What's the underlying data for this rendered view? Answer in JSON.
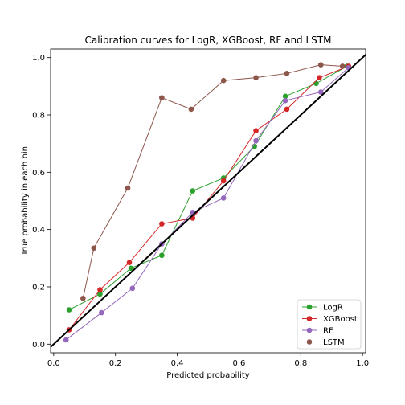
{
  "chart_data": {
    "type": "line",
    "title": "Calibration curves for LogR, XGBoost, RF and LSTM",
    "xlabel": "Predicted probability",
    "ylabel": "True probability in each bin",
    "xlim": [
      -0.01,
      1.01
    ],
    "ylim": [
      -0.03,
      1.03
    ],
    "xticks": [
      "0.0",
      "0.2",
      "0.4",
      "0.6",
      "0.8",
      "1.0"
    ],
    "yticks": [
      "0.0",
      "0.2",
      "0.4",
      "0.6",
      "0.8",
      "1.0"
    ],
    "grid": false,
    "legend_position": "lower-right",
    "reference_line": {
      "x": [
        -0.03,
        1.03
      ],
      "y": [
        -0.03,
        1.03
      ],
      "color": "#000000"
    },
    "series": [
      {
        "name": "LogR",
        "color": "#2ca02c",
        "x": [
          0.05,
          0.15,
          0.25,
          0.35,
          0.45,
          0.55,
          0.65,
          0.75,
          0.85,
          0.95
        ],
        "y": [
          0.12,
          0.175,
          0.265,
          0.31,
          0.535,
          0.58,
          0.69,
          0.865,
          0.91,
          0.97
        ]
      },
      {
        "name": "XGBoost",
        "color": "#d62728",
        "x": [
          0.05,
          0.15,
          0.245,
          0.35,
          0.45,
          0.55,
          0.655,
          0.755,
          0.86,
          0.955
        ],
        "y": [
          0.05,
          0.19,
          0.285,
          0.42,
          0.44,
          0.57,
          0.745,
          0.82,
          0.93,
          0.97
        ]
      },
      {
        "name": "RF",
        "color": "#9467bd",
        "x": [
          0.04,
          0.155,
          0.255,
          0.35,
          0.45,
          0.55,
          0.655,
          0.75,
          0.865,
          0.955
        ],
        "y": [
          0.015,
          0.11,
          0.195,
          0.35,
          0.46,
          0.51,
          0.71,
          0.85,
          0.88,
          0.965
        ]
      },
      {
        "name": "LSTM",
        "color": "#8c564b",
        "x": [
          0.095,
          0.13,
          0.24,
          0.35,
          0.445,
          0.55,
          0.655,
          0.755,
          0.865,
          0.935
        ],
        "y": [
          0.16,
          0.335,
          0.545,
          0.86,
          0.82,
          0.92,
          0.93,
          0.945,
          0.975,
          0.97
        ]
      }
    ]
  }
}
